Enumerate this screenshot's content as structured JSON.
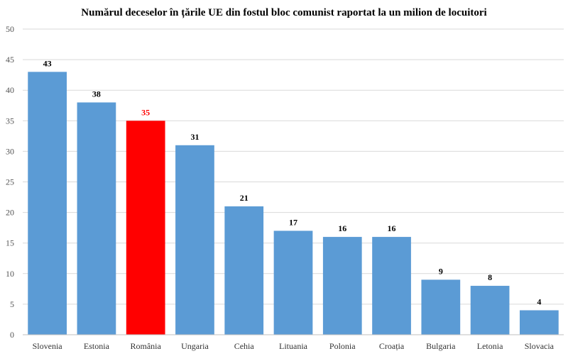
{
  "chart_data": {
    "type": "bar",
    "title": "Numărul deceselor în țările UE din fostul bloc comunist raportat la un milion de locuitori",
    "xlabel": "",
    "ylabel": "",
    "categories": [
      "Slovenia",
      "Estonia",
      "România",
      "Ungaria",
      "Cehia",
      "Lituania",
      "Polonia",
      "Croația",
      "Bulgaria",
      "Letonia",
      "Slovacia"
    ],
    "values": [
      43,
      38,
      35,
      31,
      21,
      17,
      16,
      16,
      9,
      8,
      4
    ],
    "ylim": [
      0,
      50
    ],
    "yticks": [
      0,
      5,
      10,
      15,
      20,
      25,
      30,
      35,
      40,
      45,
      50
    ],
    "grid": true,
    "legend": "none",
    "colors": {
      "bar": "#5b9bd5",
      "highlight_bar": "#ff0000",
      "highlight_label": "#ff0000",
      "label": "#000000",
      "grid": "#d9d9d9"
    },
    "highlight_index": 2
  }
}
